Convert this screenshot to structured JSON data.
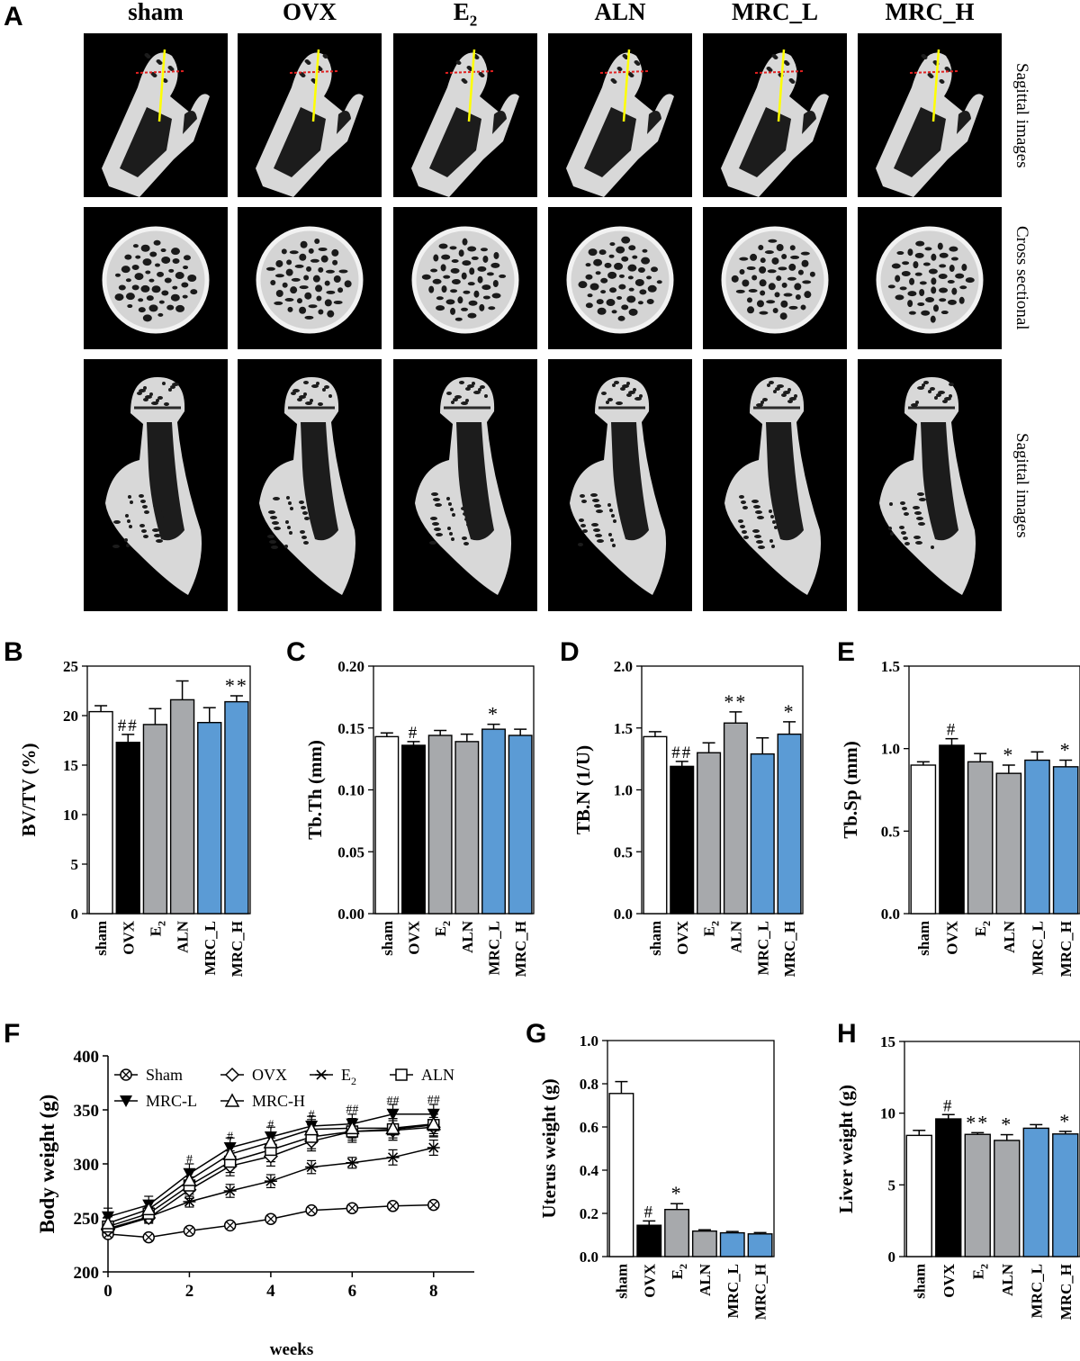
{
  "panels": {
    "A": "A",
    "B": "B",
    "C": "C",
    "D": "D",
    "E": "E",
    "F": "F",
    "G": "G",
    "H": "H"
  },
  "groups": [
    "sham",
    "OVX",
    "E2",
    "ALN",
    "MRC_L",
    "MRC_H"
  ],
  "group_headers": [
    "sham",
    "OVX",
    "E",
    "ALN",
    "MRC_L",
    "MRC_H"
  ],
  "subscript_2": "2",
  "row_labels": [
    "Sagittal images",
    "Cross sectional",
    "Sagittal images"
  ],
  "colors": {
    "sham": "#ffffff",
    "OVX": "#000000",
    "E2": "#a7a9ac",
    "ALN": "#a7a9ac",
    "MRC_L": "#5b9bd5",
    "MRC_H": "#5b9bd5",
    "image_bg": "#000000",
    "marker_yellow": "#ffff00",
    "marker_red": "#e02020"
  },
  "chart_data": [
    {
      "id": "B",
      "type": "bar",
      "categories": [
        "sham",
        "OVX",
        "E2",
        "ALN",
        "MRC_L",
        "MRC_H"
      ],
      "values": [
        20.4,
        17.3,
        19.1,
        21.6,
        19.3,
        21.4
      ],
      "errors": [
        0.6,
        0.8,
        1.6,
        1.9,
        1.5,
        0.6
      ],
      "annotations": [
        "",
        "##",
        "",
        "",
        "",
        "**"
      ],
      "ylabel": "BV/TV (%)",
      "ylim": [
        0,
        25
      ],
      "yticks": [
        0,
        5,
        10,
        15,
        20,
        25
      ],
      "ytick_labels": [
        "0",
        "5",
        "10",
        "15",
        "20",
        "25"
      ]
    },
    {
      "id": "C",
      "type": "bar",
      "categories": [
        "sham",
        "OVX",
        "E2",
        "ALN",
        "MRC_L",
        "MRC_H"
      ],
      "values": [
        0.143,
        0.136,
        0.144,
        0.139,
        0.149,
        0.144
      ],
      "errors": [
        0.003,
        0.003,
        0.004,
        0.006,
        0.004,
        0.005
      ],
      "annotations": [
        "",
        "#",
        "",
        "",
        "*",
        ""
      ],
      "ylabel": "Tb.Th (mm)",
      "ylim": [
        0,
        0.2
      ],
      "yticks": [
        0,
        0.05,
        0.1,
        0.15,
        0.2
      ],
      "ytick_labels": [
        "0.00",
        "0.05",
        "0.10",
        "0.15",
        "0.20"
      ]
    },
    {
      "id": "D",
      "type": "bar",
      "categories": [
        "sham",
        "OVX",
        "E2",
        "ALN",
        "MRC_L",
        "MRC_H"
      ],
      "values": [
        1.43,
        1.19,
        1.3,
        1.54,
        1.29,
        1.45
      ],
      "errors": [
        0.04,
        0.04,
        0.08,
        0.09,
        0.13,
        0.1
      ],
      "annotations": [
        "",
        "##",
        "",
        "**",
        "",
        "*"
      ],
      "ylabel": "TB.N (1/U)",
      "ylim": [
        0,
        2
      ],
      "yticks": [
        0,
        0.5,
        1,
        1.5,
        2
      ],
      "ytick_labels": [
        "0.0",
        "0.5",
        "1.0",
        "1.5",
        "2.0"
      ]
    },
    {
      "id": "E",
      "type": "bar",
      "categories": [
        "sham",
        "OVX",
        "E2",
        "ALN",
        "MRC_L",
        "MRC_H"
      ],
      "values": [
        0.9,
        1.02,
        0.92,
        0.85,
        0.93,
        0.89
      ],
      "errors": [
        0.02,
        0.04,
        0.05,
        0.05,
        0.05,
        0.04
      ],
      "annotations": [
        "",
        "#",
        "",
        "*",
        "",
        "*"
      ],
      "ylabel": "Tb.Sp (mm)",
      "ylim": [
        0,
        1.5
      ],
      "yticks": [
        0,
        0.5,
        1,
        1.5
      ],
      "ytick_labels": [
        "0.0",
        "0.5",
        "1.0",
        "1.5"
      ]
    },
    {
      "id": "F",
      "type": "line",
      "x": [
        0,
        1,
        2,
        3,
        4,
        5,
        6,
        7,
        8
      ],
      "series": [
        {
          "name": "Sham",
          "marker": "circle-x",
          "values": [
            235,
            232,
            238,
            243,
            249,
            257,
            259,
            261,
            262
          ],
          "errors": [
            2,
            2,
            2,
            2,
            2,
            2,
            2,
            2,
            2
          ]
        },
        {
          "name": "OVX",
          "marker": "diamond",
          "values": [
            239,
            250,
            276,
            298,
            307,
            321,
            330,
            331,
            334
          ],
          "errors": [
            4,
            5,
            8,
            9,
            9,
            9,
            8,
            9,
            9
          ]
        },
        {
          "name": "E",
          "marker": "asterisk",
          "values": [
            240,
            251,
            265,
            275,
            284,
            297,
            301,
            306,
            315
          ],
          "errors": [
            4,
            5,
            5,
            6,
            6,
            6,
            5,
            7,
            7
          ]
        },
        {
          "name": "ALN",
          "marker": "square",
          "values": [
            242,
            254,
            280,
            302,
            313,
            325,
            330,
            332,
            336
          ],
          "errors": [
            5,
            6,
            8,
            10,
            11,
            11,
            10,
            10,
            10
          ]
        },
        {
          "name": "MRC-L",
          "marker": "triangle-down",
          "values": [
            251,
            262,
            291,
            315,
            325,
            335,
            337,
            346,
            346
          ],
          "errors": [
            8,
            8,
            9,
            9,
            9,
            9,
            9,
            9,
            9
          ]
        },
        {
          "name": "MRC-H",
          "marker": "triangle-up",
          "values": [
            245,
            258,
            285,
            309,
            320,
            332,
            333,
            333,
            337
          ],
          "errors": [
            6,
            7,
            9,
            9,
            9,
            9,
            9,
            9,
            9
          ]
        }
      ],
      "legend_subscript": "2",
      "annotations": [
        {
          "x": 2,
          "y": 301,
          "text": "#"
        },
        {
          "x": 3,
          "y": 322,
          "text": "#"
        },
        {
          "x": 4,
          "y": 333,
          "text": "#"
        },
        {
          "x": 5,
          "y": 342,
          "text": "#"
        },
        {
          "x": 6,
          "y": 347,
          "text": "##"
        },
        {
          "x": 7,
          "y": 355,
          "text": "##"
        },
        {
          "x": 8,
          "y": 356,
          "text": "##"
        }
      ],
      "xlabel": "weeks",
      "ylabel": "Body weight (g)",
      "xlim": [
        0,
        9
      ],
      "xticks": [
        0,
        2,
        4,
        6,
        8
      ],
      "ylim": [
        200,
        400
      ],
      "yticks": [
        200,
        250,
        300,
        350,
        400
      ]
    },
    {
      "id": "G",
      "type": "bar",
      "categories": [
        "sham",
        "OVX",
        "E2",
        "ALN",
        "MRC_L",
        "MRC_H"
      ],
      "values": [
        0.755,
        0.145,
        0.218,
        0.118,
        0.11,
        0.105
      ],
      "errors": [
        0.055,
        0.02,
        0.027,
        0.006,
        0.006,
        0.006
      ],
      "annotations": [
        "",
        "#",
        "*",
        "",
        "",
        ""
      ],
      "ylabel": "Uterus weight (g)",
      "ylim": [
        0,
        1
      ],
      "yticks": [
        0,
        0.2,
        0.4,
        0.6,
        0.8,
        1
      ],
      "ytick_labels": [
        "0.0",
        "0.2",
        "0.4",
        "0.6",
        "0.8",
        "1.0"
      ]
    },
    {
      "id": "H",
      "type": "bar",
      "categories": [
        "sham",
        "OVX",
        "E2",
        "ALN",
        "MRC_L",
        "MRC_H"
      ],
      "values": [
        8.45,
        9.6,
        8.52,
        8.1,
        8.95,
        8.55
      ],
      "errors": [
        0.35,
        0.3,
        0.12,
        0.4,
        0.25,
        0.18
      ],
      "annotations": [
        "",
        "#",
        "**",
        "*",
        "",
        "*"
      ],
      "ylabel": "Liver weight (g)",
      "ylim": [
        0,
        15
      ],
      "yticks": [
        0,
        5,
        10,
        15
      ],
      "ytick_labels": [
        "0",
        "5",
        "10",
        "15"
      ]
    }
  ]
}
